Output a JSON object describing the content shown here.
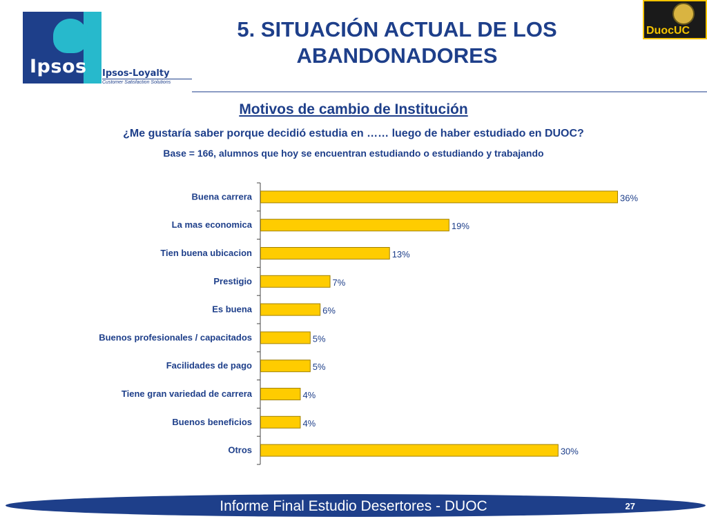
{
  "header": {
    "brand": "Ipsos",
    "brand_sub": "Ipsos-Loyalty",
    "brand_tagline": "Customer Satisfaction Solutions",
    "partner_logo": "DuocUC",
    "title": "5. SITUACIÓN ACTUAL DE LOS ABANDONADORES"
  },
  "content": {
    "subtitle": "Motivos de cambio de Institución",
    "question": "¿Me gustaría saber porque decidió estudia en …… luego de haber estudiado en DUOC?",
    "base": "Base = 166, alumnos que hoy se encuentran estudiando o estudiando y trabajando"
  },
  "footer": {
    "text": "Informe Final Estudio Desertores - DUOC",
    "page": "27"
  },
  "colors": {
    "brand_blue": "#1e3f8a",
    "bar_fill": "#ffcc00",
    "bar_stroke": "#a08000"
  },
  "chart_data": {
    "type": "bar",
    "orientation": "horizontal",
    "categories": [
      "Buena carrera",
      "La mas economica",
      "Tien buena ubicacion",
      "Prestigio",
      "Es buena",
      "Buenos profesionales / capacitados",
      "Facilidades de pago",
      "Tiene gran variedad de carrera",
      "Buenos beneficios",
      "Otros"
    ],
    "values": [
      36,
      19,
      13,
      7,
      6,
      5,
      5,
      4,
      4,
      30
    ],
    "value_labels": [
      "36%",
      "19%",
      "13%",
      "7%",
      "6%",
      "5%",
      "5%",
      "4%",
      "4%",
      "30%"
    ],
    "unit": "%",
    "xlim": [
      0,
      36
    ],
    "grid": false,
    "legend": "none"
  }
}
